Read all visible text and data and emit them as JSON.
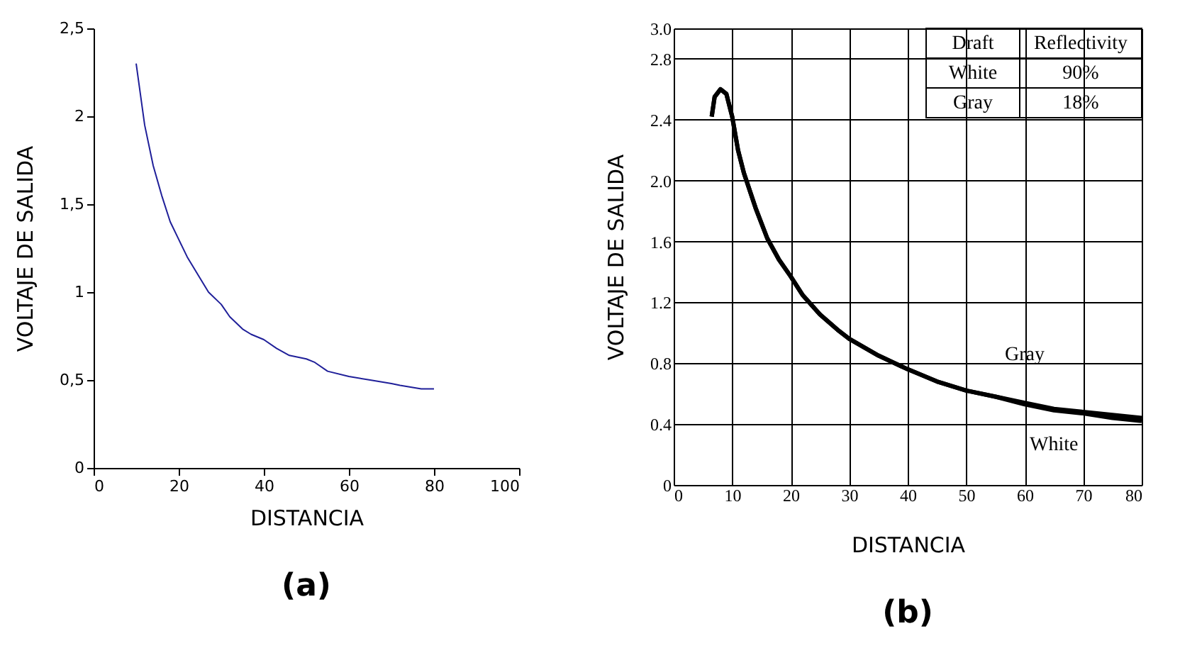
{
  "chart_data": [
    {
      "type": "line",
      "title": "(a)",
      "xlabel": "DISTANCIA",
      "ylabel": "VOLTAJE DE SALIDA",
      "xlim": [
        0,
        100
      ],
      "xticks": [
        0,
        20,
        40,
        60,
        80,
        100
      ],
      "ylim": [
        0,
        2.5
      ],
      "yticks": [
        {
          "value": 0,
          "label": "0"
        },
        {
          "value": 0.5,
          "label": "0,5"
        },
        {
          "value": 1,
          "label": "1"
        },
        {
          "value": 1.5,
          "label": "1,5"
        },
        {
          "value": 2,
          "label": "2"
        },
        {
          "value": 2.5,
          "label": "2,5"
        }
      ],
      "grid": false,
      "series": [
        {
          "color": "#1f1f99",
          "x": [
            10,
            12,
            14,
            16,
            18,
            20,
            22,
            25,
            27,
            30,
            32,
            35,
            37,
            40,
            43,
            46,
            50,
            52,
            55,
            60,
            65,
            70,
            72,
            77,
            80
          ],
          "values": [
            2.3,
            1.95,
            1.72,
            1.55,
            1.4,
            1.3,
            1.2,
            1.08,
            1.0,
            0.93,
            0.86,
            0.79,
            0.76,
            0.73,
            0.68,
            0.64,
            0.62,
            0.6,
            0.55,
            0.52,
            0.5,
            0.48,
            0.47,
            0.45,
            0.45
          ]
        }
      ]
    },
    {
      "type": "line",
      "title": "(b)",
      "xlabel": "DISTANCIA",
      "ylabel": "VOLTAJE DE SALIDA",
      "xlim": [
        0,
        80
      ],
      "xticks": [
        0,
        10,
        20,
        30,
        40,
        50,
        60,
        70,
        80
      ],
      "ylim": [
        0,
        3.0
      ],
      "yticks": [
        {
          "value": 0,
          "label": "0"
        },
        0.4,
        0.8,
        1.2,
        1.6,
        {
          "value": 2.0,
          "label": "2.0"
        },
        2.4,
        2.8,
        {
          "value": 3.0,
          "label": "3.0"
        }
      ],
      "grid": true,
      "annotations": [
        "Draft",
        "Reflectivity",
        "White",
        "90%",
        "Gray",
        "18%"
      ],
      "series": [
        {
          "name": "Gray",
          "color": "#000000",
          "x": [
            6.5,
            7,
            8,
            9,
            10,
            11,
            12,
            14,
            16,
            18,
            20,
            22,
            25,
            28,
            30,
            35,
            40,
            45,
            50,
            55,
            60,
            65,
            70,
            75,
            80
          ],
          "values": [
            2.42,
            2.55,
            2.6,
            2.57,
            2.42,
            2.2,
            2.05,
            1.82,
            1.62,
            1.48,
            1.37,
            1.25,
            1.12,
            1.02,
            0.96,
            0.85,
            0.76,
            0.68,
            0.62,
            0.58,
            0.54,
            0.5,
            0.48,
            0.46,
            0.44
          ]
        },
        {
          "name": "White",
          "color": "#000000",
          "x": [
            6.5,
            7,
            8,
            9,
            10,
            11,
            12,
            14,
            16,
            18,
            20,
            22,
            25,
            28,
            30,
            35,
            40,
            45,
            50,
            55,
            60,
            65,
            70,
            75,
            80
          ],
          "values": [
            2.42,
            2.55,
            2.6,
            2.57,
            2.42,
            2.2,
            2.05,
            1.82,
            1.62,
            1.48,
            1.37,
            1.25,
            1.12,
            1.02,
            0.96,
            0.85,
            0.76,
            0.68,
            0.62,
            0.58,
            0.53,
            0.49,
            0.47,
            0.44,
            0.42
          ]
        }
      ]
    }
  ]
}
